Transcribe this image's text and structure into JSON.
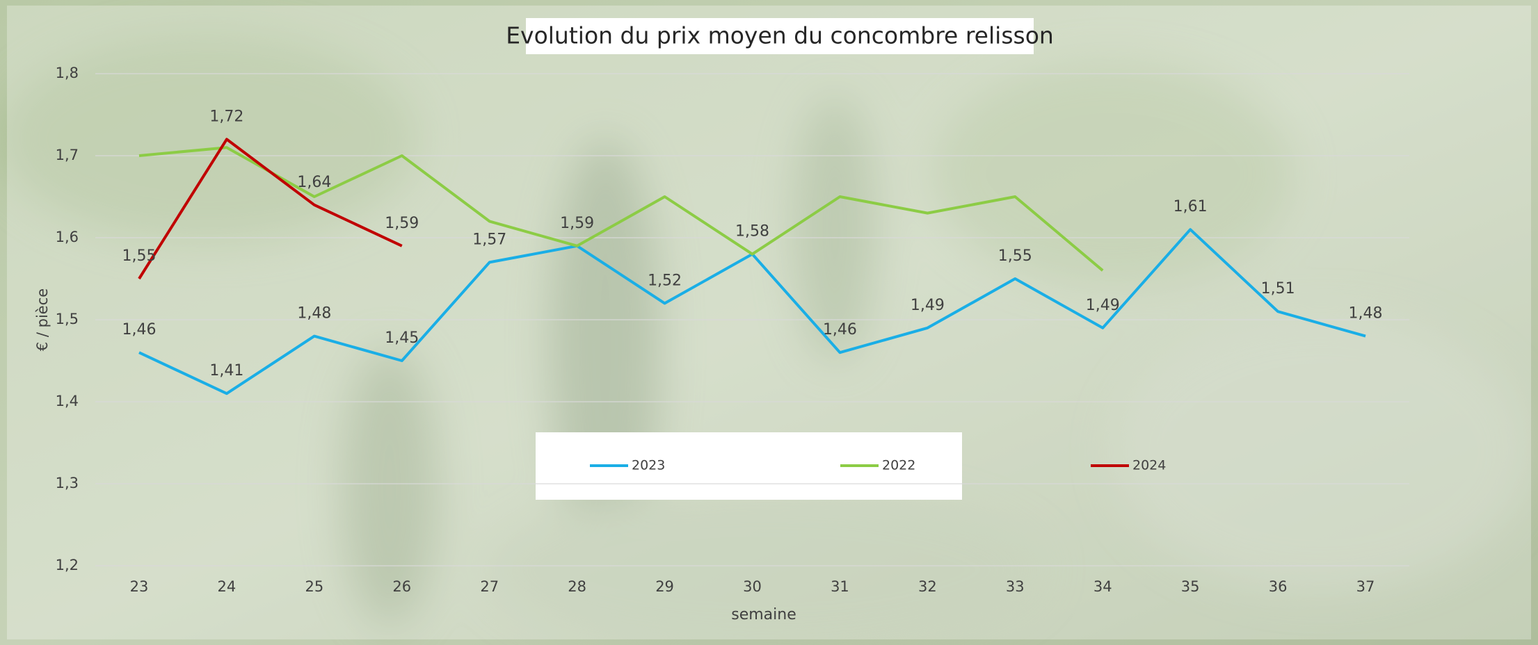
{
  "chart_data": {
    "type": "line",
    "title": "Evolution du prix moyen du concombre relisson",
    "x_label": "semaine",
    "y_label": "€ / pièce",
    "categories": [
      "23",
      "24",
      "25",
      "26",
      "27",
      "28",
      "29",
      "30",
      "31",
      "32",
      "33",
      "34",
      "35",
      "36",
      "37"
    ],
    "series": [
      {
        "name": "2023",
        "color": "#1aaee6",
        "values": [
          1.46,
          1.41,
          1.48,
          1.45,
          1.57,
          1.59,
          1.52,
          1.58,
          1.46,
          1.49,
          1.55,
          1.49,
          1.61,
          1.51,
          1.48
        ],
        "value_labels": [
          "1,46",
          "1,41",
          "1,48",
          "1,45",
          "1,57",
          "1,59",
          "1,52",
          "1,58",
          "1,46",
          "1,49",
          "1,55",
          "1,49",
          "1,61",
          "1,51",
          "1,48"
        ]
      },
      {
        "name": "2022",
        "color": "#8ccc45",
        "values": [
          1.7,
          1.71,
          1.65,
          1.7,
          1.62,
          1.59,
          1.65,
          1.58,
          1.65,
          1.63,
          1.65,
          1.56,
          null,
          null,
          null
        ]
      },
      {
        "name": "2024",
        "color": "#c00000",
        "values": [
          1.55,
          1.72,
          1.64,
          1.59,
          null,
          null,
          null,
          null,
          null,
          null,
          null,
          null,
          null,
          null,
          null
        ],
        "value_labels": [
          "1,55",
          "1,72",
          "1,64",
          "1,59",
          null,
          null,
          null,
          null,
          null,
          null,
          null,
          null,
          null,
          null,
          null
        ]
      }
    ],
    "ylim": [
      1.2,
      1.8
    ],
    "yticks": [
      {
        "value": 1.2,
        "label": "1,2"
      },
      {
        "value": 1.3,
        "label": "1,3"
      },
      {
        "value": 1.4,
        "label": "1,4"
      },
      {
        "value": 1.5,
        "label": "1,5"
      },
      {
        "value": 1.6,
        "label": "1,6"
      },
      {
        "value": 1.7,
        "label": "1,7"
      },
      {
        "value": 1.8,
        "label": "1,8"
      }
    ],
    "grid": true
  }
}
